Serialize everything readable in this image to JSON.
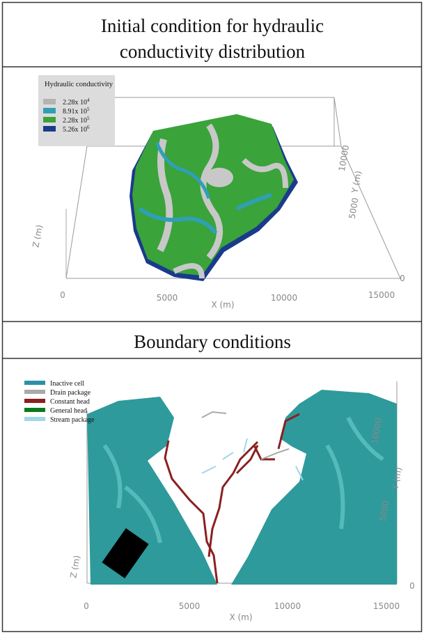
{
  "panels": [
    {
      "title": [
        "Initial condition for hydraulic",
        "conductivity distribution"
      ],
      "legend": {
        "title": "Hydraulic conductivity",
        "items": [
          {
            "base": "2.28x 10",
            "exp": "4",
            "color": "#b3b3b3"
          },
          {
            "base": "8.91x 10",
            "exp": "5",
            "color": "#2fa0b4"
          },
          {
            "base": "2.28x 10",
            "exp": "5",
            "color": "#3aa33a"
          },
          {
            "base": "5.26x 10",
            "exp": "6",
            "color": "#1a3a8c"
          }
        ]
      },
      "x_axis": {
        "label": "X (m)",
        "ticks": [
          "0",
          "5000",
          "10000",
          "15000"
        ]
      },
      "y_axis": {
        "label": "Y (m)",
        "ticks": [
          "0",
          "5000",
          "10000"
        ]
      },
      "z_axis": {
        "label": "Z (m)"
      }
    },
    {
      "title": [
        "Boundary conditions"
      ],
      "legend": {
        "items": [
          {
            "label": "Inactive cell",
            "color": "#2f8fa8"
          },
          {
            "label": "Drain package",
            "color": "#aaaaaa"
          },
          {
            "label": "Constant head",
            "color": "#8b2020"
          },
          {
            "label": "General head",
            "color": "#0a7a20"
          },
          {
            "label": "Stream package",
            "color": "#9fd8e8"
          }
        ]
      },
      "x_axis": {
        "label": "X (m)",
        "ticks": [
          "0",
          "5000",
          "10000",
          "15000"
        ]
      },
      "y_axis": {
        "label": "Y (m)",
        "ticks": [
          "0",
          "5000",
          "10000"
        ]
      },
      "z_axis": {
        "label": "Z (m)"
      }
    }
  ]
}
